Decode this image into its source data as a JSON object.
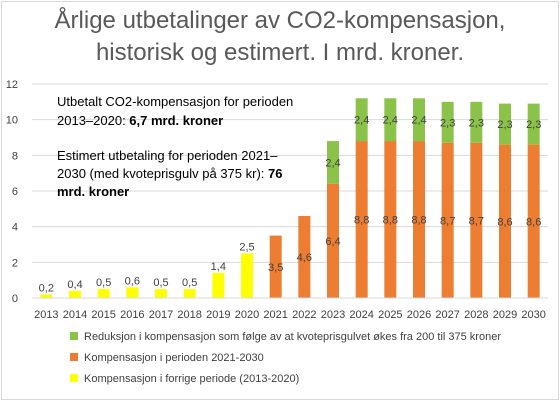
{
  "chart_data": {
    "type": "bar",
    "stacked": true,
    "title_line1": "Årlige utbetalinger av CO2-kompensasjon,",
    "title_line2": "historisk og estimert. I mrd. kroner.",
    "categories": [
      "2013",
      "2014",
      "2015",
      "2016",
      "2017",
      "2018",
      "2019",
      "2020",
      "2021",
      "2022",
      "2023",
      "2024",
      "2025",
      "2026",
      "2027",
      "2028",
      "2029",
      "2030"
    ],
    "ylim": [
      0,
      12
    ],
    "yticks": [
      "0",
      "2",
      "4",
      "6",
      "8",
      "10",
      "12"
    ],
    "grid": true,
    "legend_position": "bottom",
    "series": [
      {
        "name": "Kompensasjon i forrige periode (2013-2020)",
        "color": "#ffff00",
        "values": [
          0.2,
          0.4,
          0.5,
          0.6,
          0.5,
          0.5,
          1.4,
          2.5,
          null,
          null,
          null,
          null,
          null,
          null,
          null,
          null,
          null,
          null
        ],
        "labels": [
          "0,2",
          "0,4",
          "0,5",
          "0,6",
          "0,5",
          "0,5",
          "1,4",
          "2,5",
          "",
          "",
          "",
          "",
          "",
          "",
          "",
          "",
          "",
          ""
        ]
      },
      {
        "name": "Kompensasjon i perioden 2021-2030",
        "color": "#ed7d31",
        "values": [
          null,
          null,
          null,
          null,
          null,
          null,
          null,
          null,
          3.5,
          4.6,
          6.4,
          8.8,
          8.8,
          8.8,
          8.7,
          8.7,
          8.6,
          8.6
        ],
        "labels": [
          "",
          "",
          "",
          "",
          "",
          "",
          "",
          "",
          "3,5",
          "4,6",
          "6,4",
          "8,8",
          "8,8",
          "8,8",
          "8,7",
          "8,7",
          "8,6",
          "8,6"
        ]
      },
      {
        "name": "Reduksjon i kompensasjon som følge av at kvoteprisgulvet økes fra 200 til 375 kroner",
        "color": "#8bc34a",
        "values": [
          null,
          null,
          null,
          null,
          null,
          null,
          null,
          null,
          null,
          null,
          2.4,
          2.4,
          2.4,
          2.4,
          2.3,
          2.3,
          2.3,
          2.3
        ],
        "labels": [
          "",
          "",
          "",
          "",
          "",
          "",
          "",
          "",
          "",
          "",
          "2,4",
          "2,4",
          "2,4",
          "2,4",
          "2,3",
          "2,3",
          "2,3",
          "2,3"
        ]
      }
    ],
    "legend_order": [
      2,
      1,
      0
    ],
    "annotations": {
      "historic_line1": "Utbetalt CO2-kompensasjon for perioden",
      "historic_line2_prefix": "2013–2020: ",
      "historic_line2_bold": "6,7 mrd. kroner",
      "estimated_line1": "Estimert utbetaling for perioden 2021–",
      "estimated_line2_prefix": "2030 (med kvoteprisgulv på 375 kr): ",
      "estimated_line2_bold": "76",
      "estimated_line3_bold": "mrd. kroner"
    }
  }
}
